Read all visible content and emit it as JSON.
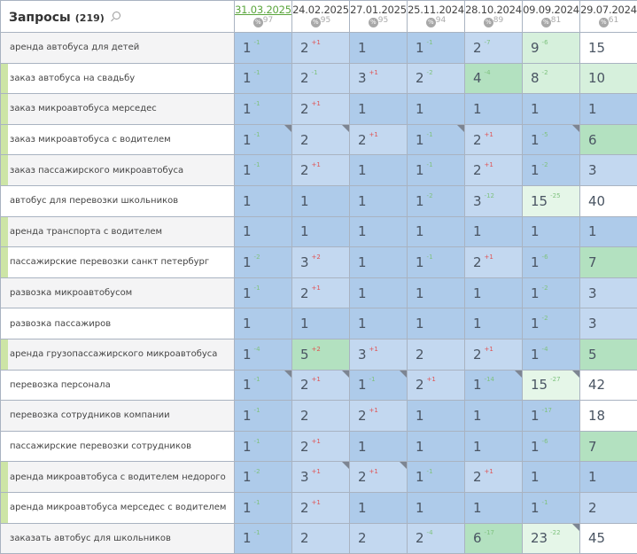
{
  "header": {
    "title": "Запросы",
    "count": "(219)",
    "search_icon": "search-icon",
    "percent_icon": "%"
  },
  "columns": [
    {
      "date": "31.03.2025",
      "pct": "97",
      "active": true
    },
    {
      "date": "24.02.2025",
      "pct": "95"
    },
    {
      "date": "27.01.2025",
      "pct": "95"
    },
    {
      "date": "25.11.2024",
      "pct": "94"
    },
    {
      "date": "28.10.2024",
      "pct": "89"
    },
    {
      "date": "09.09.2024",
      "pct": "81"
    },
    {
      "date": "29.07.2024",
      "pct": "61"
    }
  ],
  "colors": {
    "b1": "#aecbea",
    "b2": "#c3d8f0",
    "g1": "#b3e1c0",
    "g2": "#d6f0dc",
    "g3": "#e5f6e8",
    "w": "#ffffff",
    "marker": "#cde5a6",
    "improve": "#7fc27f",
    "decline": "#e05252",
    "active_date": "#5aa53c"
  },
  "rows": [
    {
      "q": "аренда автобуса для детей",
      "m": false,
      "cells": [
        {
          "v": "1",
          "d": "-1",
          "c": "b1"
        },
        {
          "v": "2",
          "d": "+1",
          "c": "b2"
        },
        {
          "v": "1",
          "c": "b1"
        },
        {
          "v": "1",
          "d": "-1",
          "c": "b1"
        },
        {
          "v": "2",
          "d": "-7",
          "c": "b2"
        },
        {
          "v": "9",
          "d": "-6",
          "c": "g2"
        },
        {
          "v": "15",
          "c": "w"
        }
      ]
    },
    {
      "q": "заказ автобуса на свадьбу",
      "m": true,
      "cells": [
        {
          "v": "1",
          "d": "-1",
          "c": "b1"
        },
        {
          "v": "2",
          "d": "-1",
          "c": "b2"
        },
        {
          "v": "3",
          "d": "+1",
          "c": "b2"
        },
        {
          "v": "2",
          "d": "-2",
          "c": "b2"
        },
        {
          "v": "4",
          "d": "-4",
          "c": "g1"
        },
        {
          "v": "8",
          "d": "-2",
          "c": "g2"
        },
        {
          "v": "10",
          "c": "g2"
        }
      ]
    },
    {
      "q": "заказ микроавтобуса мерседес",
      "m": true,
      "cells": [
        {
          "v": "1",
          "d": "-1",
          "c": "b1"
        },
        {
          "v": "2",
          "d": "+1",
          "c": "b2"
        },
        {
          "v": "1",
          "c": "b1"
        },
        {
          "v": "1",
          "c": "b1"
        },
        {
          "v": "1",
          "c": "b1"
        },
        {
          "v": "1",
          "c": "b1"
        },
        {
          "v": "1",
          "c": "b1"
        }
      ]
    },
    {
      "q": "заказ микроавтобуса с водителем",
      "m": true,
      "cells": [
        {
          "v": "1",
          "d": "-1",
          "c": "b1",
          "n": true
        },
        {
          "v": "2",
          "c": "b2",
          "n": true
        },
        {
          "v": "2",
          "d": "+1",
          "c": "b2"
        },
        {
          "v": "1",
          "d": "-1",
          "c": "b1",
          "n": true
        },
        {
          "v": "2",
          "d": "+1",
          "c": "b2"
        },
        {
          "v": "1",
          "d": "-5",
          "c": "b1",
          "n": true
        },
        {
          "v": "6",
          "c": "g1"
        }
      ]
    },
    {
      "q": "заказ пассажирского микроавтобуса",
      "m": true,
      "cells": [
        {
          "v": "1",
          "d": "-1",
          "c": "b1"
        },
        {
          "v": "2",
          "d": "+1",
          "c": "b2"
        },
        {
          "v": "1",
          "c": "b1"
        },
        {
          "v": "1",
          "d": "-1",
          "c": "b1"
        },
        {
          "v": "2",
          "d": "+1",
          "c": "b2"
        },
        {
          "v": "1",
          "d": "-2",
          "c": "b1"
        },
        {
          "v": "3",
          "c": "b2"
        }
      ]
    },
    {
      "q": "автобус для перевозки школьников",
      "m": false,
      "cells": [
        {
          "v": "1",
          "c": "b1"
        },
        {
          "v": "1",
          "c": "b1"
        },
        {
          "v": "1",
          "c": "b1"
        },
        {
          "v": "1",
          "d": "-2",
          "c": "b1"
        },
        {
          "v": "3",
          "d": "-12",
          "c": "b2"
        },
        {
          "v": "15",
          "d": "-25",
          "c": "g3"
        },
        {
          "v": "40",
          "c": "w"
        }
      ]
    },
    {
      "q": "аренда транспорта с водителем",
      "m": true,
      "cells": [
        {
          "v": "1",
          "c": "b1"
        },
        {
          "v": "1",
          "c": "b1"
        },
        {
          "v": "1",
          "c": "b1"
        },
        {
          "v": "1",
          "c": "b1"
        },
        {
          "v": "1",
          "c": "b1"
        },
        {
          "v": "1",
          "c": "b1"
        },
        {
          "v": "1",
          "c": "b1"
        }
      ]
    },
    {
      "q": "пассажирские перевозки санкт петербург",
      "m": true,
      "cells": [
        {
          "v": "1",
          "d": "-2",
          "c": "b1"
        },
        {
          "v": "3",
          "d": "+2",
          "c": "b2"
        },
        {
          "v": "1",
          "c": "b1"
        },
        {
          "v": "1",
          "d": "-1",
          "c": "b1"
        },
        {
          "v": "2",
          "d": "+1",
          "c": "b2"
        },
        {
          "v": "1",
          "d": "-6",
          "c": "b1"
        },
        {
          "v": "7",
          "c": "g1"
        }
      ]
    },
    {
      "q": "развозка микроавтобусом",
      "m": false,
      "cells": [
        {
          "v": "1",
          "d": "-1",
          "c": "b1"
        },
        {
          "v": "2",
          "d": "+1",
          "c": "b2"
        },
        {
          "v": "1",
          "c": "b1"
        },
        {
          "v": "1",
          "c": "b1"
        },
        {
          "v": "1",
          "c": "b1"
        },
        {
          "v": "1",
          "d": "-2",
          "c": "b1"
        },
        {
          "v": "3",
          "c": "b2"
        }
      ]
    },
    {
      "q": "развозка пассажиров",
      "m": false,
      "cells": [
        {
          "v": "1",
          "c": "b1"
        },
        {
          "v": "1",
          "c": "b1"
        },
        {
          "v": "1",
          "c": "b1"
        },
        {
          "v": "1",
          "c": "b1"
        },
        {
          "v": "1",
          "c": "b1"
        },
        {
          "v": "1",
          "d": "-2",
          "c": "b1"
        },
        {
          "v": "3",
          "c": "b2"
        }
      ]
    },
    {
      "q": "аренда грузопассажирского микроавтобуса",
      "m": true,
      "cells": [
        {
          "v": "1",
          "d": "-4",
          "c": "b1"
        },
        {
          "v": "5",
          "d": "+2",
          "c": "g1"
        },
        {
          "v": "3",
          "d": "+1",
          "c": "b2"
        },
        {
          "v": "2",
          "c": "b2"
        },
        {
          "v": "2",
          "d": "+1",
          "c": "b2"
        },
        {
          "v": "1",
          "d": "-4",
          "c": "b1"
        },
        {
          "v": "5",
          "c": "g1"
        }
      ]
    },
    {
      "q": "перевозка персонала",
      "m": false,
      "cells": [
        {
          "v": "1",
          "d": "-1",
          "c": "b1",
          "n": true
        },
        {
          "v": "2",
          "d": "+1",
          "c": "b2",
          "n": true
        },
        {
          "v": "1",
          "d": "-1",
          "c": "b1",
          "n": true
        },
        {
          "v": "2",
          "d": "+1",
          "c": "b2"
        },
        {
          "v": "1",
          "d": "-14",
          "c": "b1",
          "n": true
        },
        {
          "v": "15",
          "d": "-27",
          "c": "g3",
          "n": true
        },
        {
          "v": "42",
          "c": "w"
        }
      ]
    },
    {
      "q": "перевозка сотрудников компании",
      "m": false,
      "cells": [
        {
          "v": "1",
          "d": "-1",
          "c": "b1"
        },
        {
          "v": "2",
          "c": "b2"
        },
        {
          "v": "2",
          "d": "+1",
          "c": "b2"
        },
        {
          "v": "1",
          "c": "b1"
        },
        {
          "v": "1",
          "c": "b1"
        },
        {
          "v": "1",
          "d": "-17",
          "c": "b1"
        },
        {
          "v": "18",
          "c": "w"
        }
      ]
    },
    {
      "q": "пассажирские перевозки сотрудников",
      "m": false,
      "cells": [
        {
          "v": "1",
          "d": "-1",
          "c": "b1"
        },
        {
          "v": "2",
          "d": "+1",
          "c": "b2"
        },
        {
          "v": "1",
          "c": "b1"
        },
        {
          "v": "1",
          "c": "b1"
        },
        {
          "v": "1",
          "c": "b1"
        },
        {
          "v": "1",
          "d": "-6",
          "c": "b1"
        },
        {
          "v": "7",
          "c": "g1"
        }
      ]
    },
    {
      "q": "аренда микроавтобуса с водителем недорого",
      "m": true,
      "cells": [
        {
          "v": "1",
          "d": "-2",
          "c": "b1"
        },
        {
          "v": "3",
          "d": "+1",
          "c": "b2",
          "n": true
        },
        {
          "v": "2",
          "d": "+1",
          "c": "b2",
          "n": true
        },
        {
          "v": "1",
          "d": "-1",
          "c": "b1"
        },
        {
          "v": "2",
          "d": "+1",
          "c": "b2"
        },
        {
          "v": "1",
          "c": "b1"
        },
        {
          "v": "1",
          "c": "b1"
        }
      ]
    },
    {
      "q": "аренда микроавтобуса мерседес с водителем",
      "m": true,
      "cells": [
        {
          "v": "1",
          "d": "-1",
          "c": "b1"
        },
        {
          "v": "2",
          "d": "+1",
          "c": "b2"
        },
        {
          "v": "1",
          "c": "b1"
        },
        {
          "v": "1",
          "c": "b1"
        },
        {
          "v": "1",
          "c": "b1"
        },
        {
          "v": "1",
          "d": "-1",
          "c": "b1"
        },
        {
          "v": "2",
          "c": "b2"
        }
      ]
    },
    {
      "q": "заказать автобус для школьников",
      "m": false,
      "cells": [
        {
          "v": "1",
          "d": "-1",
          "c": "b1"
        },
        {
          "v": "2",
          "c": "b2"
        },
        {
          "v": "2",
          "c": "b2"
        },
        {
          "v": "2",
          "d": "-4",
          "c": "b2"
        },
        {
          "v": "6",
          "d": "-17",
          "c": "g1"
        },
        {
          "v": "23",
          "d": "-22",
          "c": "g3",
          "n": true
        },
        {
          "v": "45",
          "c": "w"
        }
      ]
    }
  ]
}
